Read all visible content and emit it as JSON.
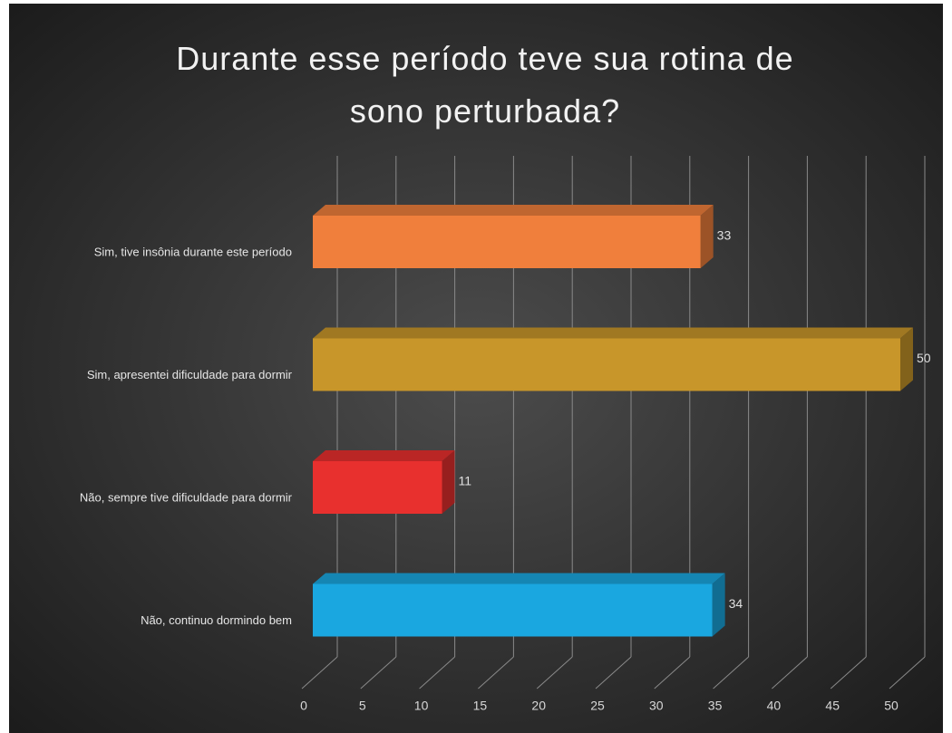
{
  "chart_data": {
    "type": "bar3d_horizontal",
    "title": "Durante esse período teve sua rotina de sono perturbada?",
    "categories": [
      "Sim, tive insônia durante este período",
      "Sim, apresentei dificuldade para dormir",
      "Não, sempre tive dificuldade para dormir",
      "Não, continuo dormindo bem"
    ],
    "values": [
      33,
      50,
      11,
      34
    ],
    "colors": [
      "#f07f3c",
      "#c8962a",
      "#e8302e",
      "#1aa7e0"
    ],
    "xlim": [
      0,
      50
    ],
    "xticks": [
      0,
      5,
      10,
      15,
      20,
      25,
      30,
      35,
      40,
      45,
      50
    ],
    "grid": true
  }
}
